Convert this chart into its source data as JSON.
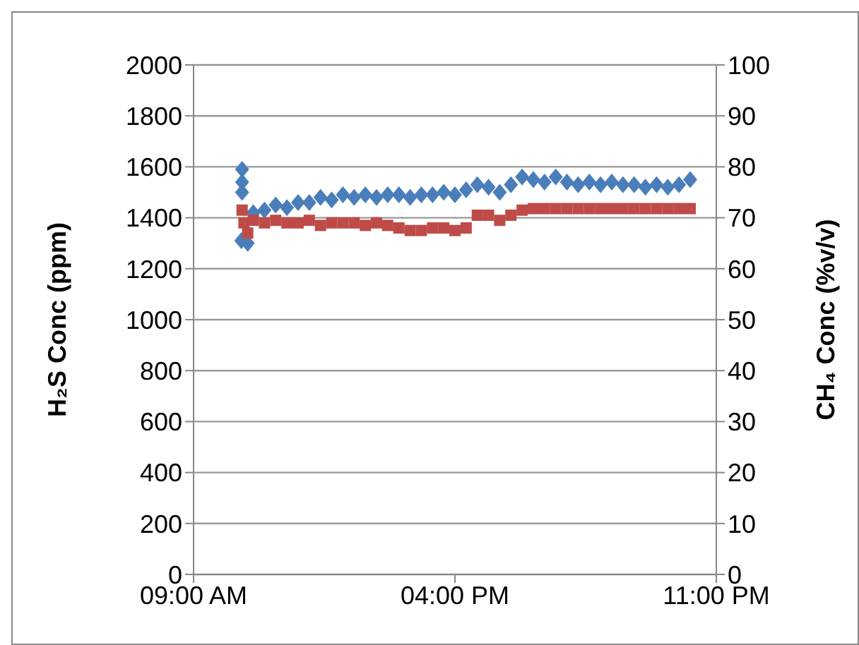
{
  "chart_data": {
    "type": "scatter",
    "ylabel": "H₂S Conc (ppm)",
    "y2label": "CH₄ Conc (%v/v)",
    "grid": "y",
    "legend": false,
    "xlim": [
      9,
      23
    ],
    "xticks": [
      {
        "value": 9,
        "label": "09:00 AM"
      },
      {
        "value": 16,
        "label": "04:00 PM"
      },
      {
        "value": 23,
        "label": "11:00 PM"
      }
    ],
    "ylim": [
      0,
      2000
    ],
    "yticks": [
      0,
      200,
      400,
      600,
      800,
      1000,
      1200,
      1400,
      1600,
      1800,
      2000
    ],
    "y2lim": [
      0,
      100
    ],
    "y2ticks": [
      0,
      10,
      20,
      30,
      40,
      50,
      60,
      70,
      80,
      90,
      100
    ],
    "series": [
      {
        "color": "#4a7ebb",
        "marker": "diamond",
        "x": [
          10.3,
          10.3,
          10.3,
          10.28,
          10.45,
          10.6,
          10.9,
          11.2,
          11.5,
          11.8,
          12.1,
          12.4,
          12.7,
          13.0,
          13.3,
          13.6,
          13.9,
          14.2,
          14.5,
          14.8,
          15.1,
          15.4,
          15.7,
          16.0,
          16.3,
          16.6,
          16.9,
          17.2,
          17.5,
          17.8,
          18.1,
          18.4,
          18.7,
          19.0,
          19.3,
          19.6,
          19.9,
          20.2,
          20.5,
          20.8,
          21.1,
          21.4,
          21.7,
          22.0,
          22.3
        ],
        "values": [
          1590,
          1540,
          1500,
          1310,
          1300,
          1420,
          1430,
          1450,
          1440,
          1460,
          1460,
          1480,
          1470,
          1490,
          1480,
          1490,
          1480,
          1490,
          1490,
          1480,
          1490,
          1490,
          1500,
          1490,
          1510,
          1530,
          1520,
          1500,
          1530,
          1560,
          1550,
          1540,
          1560,
          1540,
          1530,
          1540,
          1530,
          1540,
          1530,
          1530,
          1520,
          1530,
          1520,
          1530,
          1550
        ]
      },
      {
        "color": "#be4b48",
        "marker": "square",
        "axis": "y2",
        "x": [
          10.3,
          10.35,
          10.45,
          10.6,
          10.9,
          11.2,
          11.5,
          11.8,
          12.1,
          12.4,
          12.7,
          13.0,
          13.3,
          13.6,
          13.9,
          14.2,
          14.5,
          14.8,
          15.1,
          15.4,
          15.7,
          16.0,
          16.3,
          16.6,
          16.9,
          17.2,
          17.5,
          17.8,
          18.1,
          18.4,
          18.7,
          19.0,
          19.3,
          19.6,
          19.9,
          20.2,
          20.5,
          20.8,
          21.1,
          21.4,
          21.7,
          22.0,
          22.3
        ],
        "values": [
          71.5,
          69,
          67,
          69.5,
          69,
          69.5,
          69,
          69,
          69.5,
          68.5,
          69,
          69,
          69,
          68.5,
          69,
          68.5,
          68,
          67.5,
          67.5,
          68,
          68,
          67.5,
          68,
          70.5,
          70.5,
          69.5,
          70.5,
          71.5,
          71.8,
          71.8,
          71.8,
          71.8,
          71.8,
          71.8,
          71.8,
          71.8,
          71.8,
          71.8,
          71.8,
          71.8,
          71.8,
          71.8,
          71.8
        ]
      }
    ]
  }
}
